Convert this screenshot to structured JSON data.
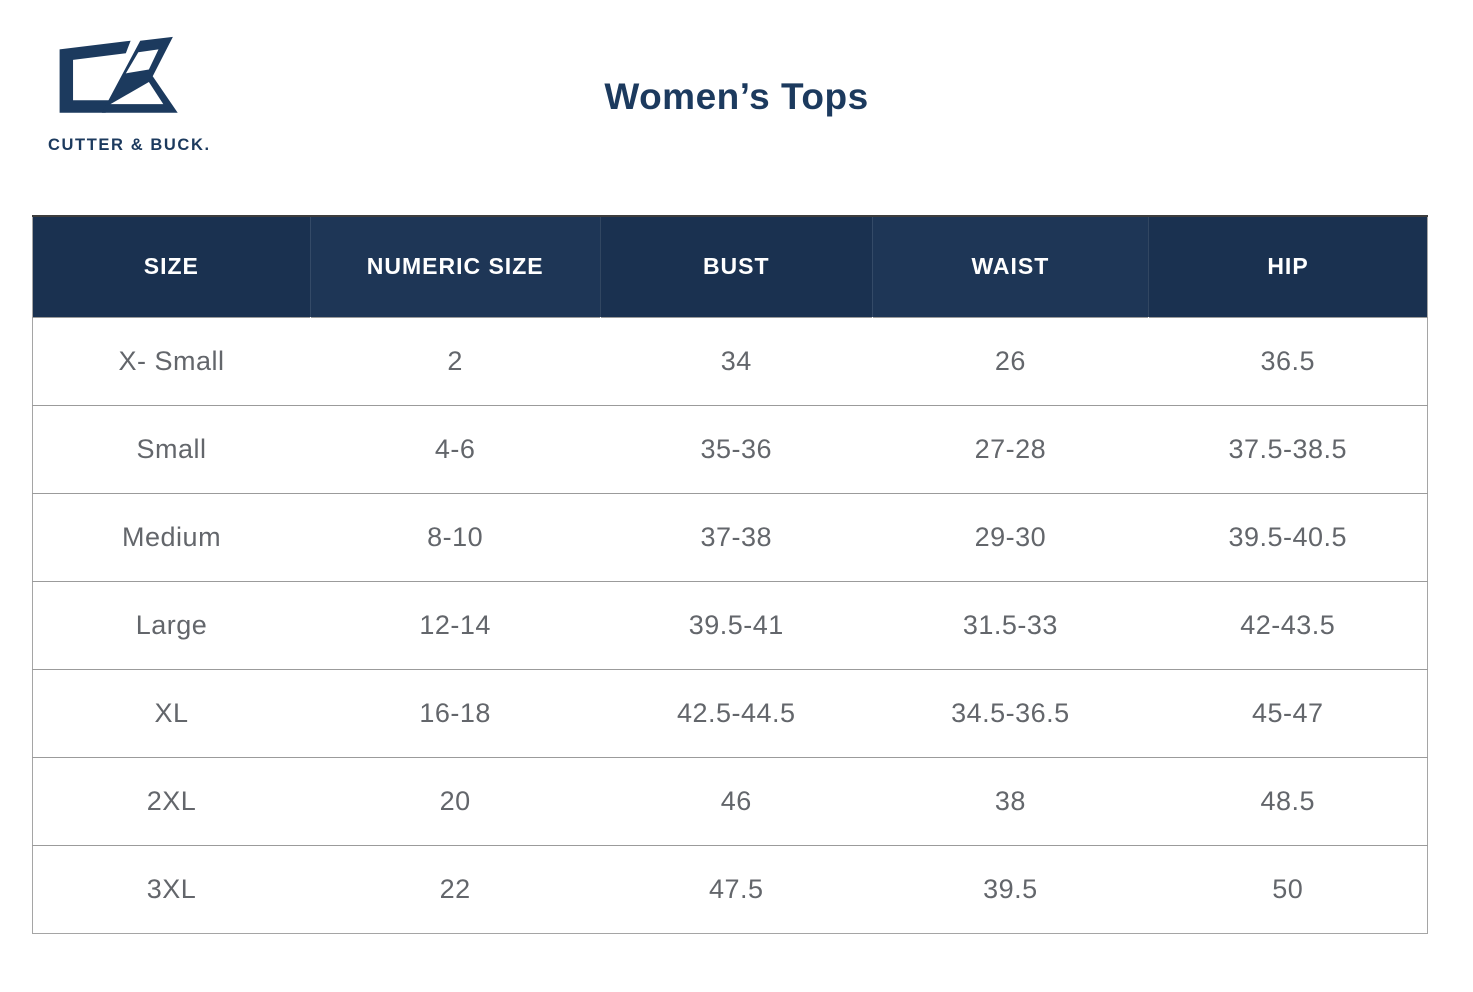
{
  "brand": {
    "name": "CUTTER & BUCK.",
    "logo_icon": "cutter-buck-cb-monogram",
    "logo_color": "#1c3a5e"
  },
  "page": {
    "title": "Women’s Tops"
  },
  "colors": {
    "header_bg": "#1a3150",
    "header_bg_alt": "#1e3656",
    "header_text": "#ffffff",
    "body_text": "#63666b",
    "row_border": "#9b9b9b",
    "outer_border": "#a5a5a5",
    "navy_brand": "#1c3a5e"
  },
  "chart_data": {
    "type": "table",
    "title": "Women’s Tops",
    "columns": [
      "SIZE",
      "NUMERIC SIZE",
      "BUST",
      "WAIST",
      "HIP"
    ],
    "rows": [
      [
        "X- Small",
        "2",
        "34",
        "26",
        "36.5"
      ],
      [
        "Small",
        "4-6",
        "35-36",
        "27-28",
        "37.5-38.5"
      ],
      [
        "Medium",
        "8-10",
        "37-38",
        "29-30",
        "39.5-40.5"
      ],
      [
        "Large",
        "12-14",
        "39.5-41",
        "31.5-33",
        "42-43.5"
      ],
      [
        "XL",
        "16-18",
        "42.5-44.5",
        "34.5-36.5",
        "45-47"
      ],
      [
        "2XL",
        "20",
        "46",
        "38",
        "48.5"
      ],
      [
        "3XL",
        "22",
        "47.5",
        "39.5",
        "50"
      ]
    ],
    "column_widths_pct": [
      19.9,
      20.8,
      19.5,
      19.8,
      20.0
    ],
    "legend_position": "none",
    "grid": "horizontal-rows-only"
  }
}
